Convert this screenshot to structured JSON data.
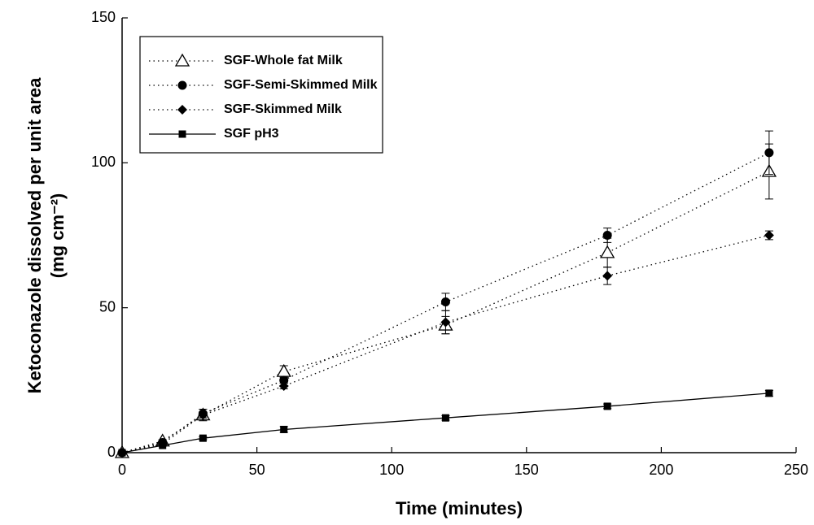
{
  "chart_data": {
    "type": "line",
    "xlabel": "Time (minutes)",
    "ylabel": [
      "Ketoconazole dissolved per unit area",
      "(mg cm⁻²)"
    ],
    "x": [
      0,
      15,
      30,
      60,
      120,
      180,
      240
    ],
    "xlim": [
      0,
      250
    ],
    "xticks": [
      0,
      50,
      100,
      150,
      200,
      250
    ],
    "ylim": [
      0,
      150
    ],
    "yticks": [
      0,
      50,
      100,
      150
    ],
    "series": [
      {
        "name": "SGF-Whole fat Milk",
        "color": "#000000",
        "marker": "triangle-open",
        "line_style": "dotted",
        "values": [
          0,
          4,
          13,
          28,
          44,
          69,
          97
        ],
        "errors": [
          0,
          0.5,
          2,
          2,
          3,
          5,
          9.5
        ]
      },
      {
        "name": "SGF-Semi-Skimmed Milk",
        "color": "#000000",
        "marker": "circle",
        "line_style": "dotted",
        "values": [
          0,
          3.5,
          13.5,
          25,
          52,
          75,
          103.5
        ],
        "errors": [
          0,
          0.5,
          1.5,
          1,
          3,
          2.5,
          7.5
        ]
      },
      {
        "name": "SGF-Skimmed Milk",
        "color": "#000000",
        "marker": "diamond",
        "line_style": "dotted",
        "values": [
          0,
          3,
          13,
          23,
          45,
          61,
          75
        ],
        "errors": [
          0,
          0.5,
          1,
          1,
          4,
          3,
          1.5
        ]
      },
      {
        "name": "SGF pH3",
        "color": "#000000",
        "marker": "square",
        "line_style": "solid",
        "values": [
          0,
          2.5,
          5,
          8,
          12,
          16,
          20.5
        ],
        "errors": [
          0,
          0.3,
          0.5,
          1,
          0.8,
          0.8,
          1
        ]
      }
    ]
  }
}
